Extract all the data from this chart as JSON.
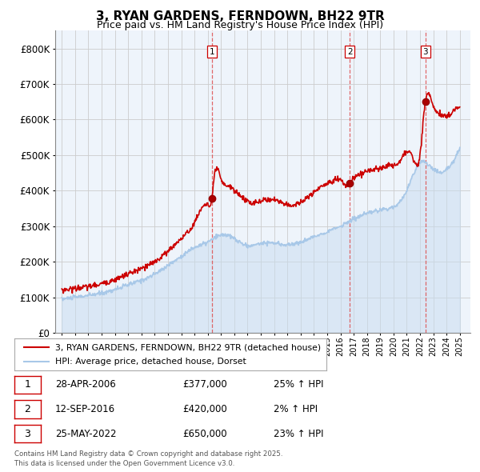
{
  "title": "3, RYAN GARDENS, FERNDOWN, BH22 9TR",
  "subtitle": "Price paid vs. HM Land Registry's House Price Index (HPI)",
  "legend_line1": "3, RYAN GARDENS, FERNDOWN, BH22 9TR (detached house)",
  "legend_line2": "HPI: Average price, detached house, Dorset",
  "footer1": "Contains HM Land Registry data © Crown copyright and database right 2025.",
  "footer2": "This data is licensed under the Open Government Licence v3.0.",
  "transactions": [
    {
      "num": 1,
      "date": "28-APR-2006",
      "price": "£377,000",
      "hpi": "25% ↑ HPI",
      "year": 2006.32,
      "value": 377000
    },
    {
      "num": 2,
      "date": "12-SEP-2016",
      "price": "£420,000",
      "hpi": "2% ↑ HPI",
      "year": 2016.7,
      "value": 420000
    },
    {
      "num": 3,
      "date": "25-MAY-2022",
      "price": "£650,000",
      "hpi": "23% ↑ HPI",
      "year": 2022.4,
      "value": 650000
    }
  ],
  "hpi_color": "#a8c8e8",
  "price_color": "#cc0000",
  "background_color": "#ffffff",
  "grid_color": "#cccccc",
  "ylim": [
    0,
    850000
  ],
  "yticks": [
    0,
    100000,
    200000,
    300000,
    400000,
    500000,
    600000,
    700000,
    800000
  ],
  "xlim_start": 1994.5,
  "xlim_end": 2025.8
}
